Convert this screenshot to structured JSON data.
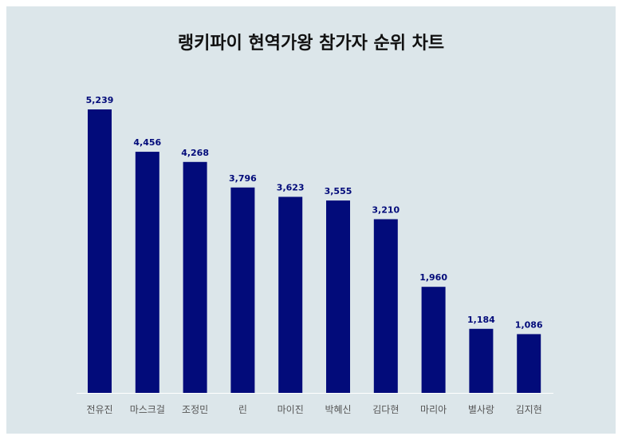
{
  "chart_data": {
    "type": "bar",
    "title": "랭키파이 현역가왕 참가자 순위 차트",
    "categories": [
      "전유진",
      "마스크걸",
      "조정민",
      "린",
      "마이진",
      "박혜신",
      "김다현",
      "마리아",
      "별사랑",
      "김지현"
    ],
    "values": [
      5239,
      4456,
      4268,
      3796,
      3623,
      3555,
      3210,
      1960,
      1184,
      1086
    ],
    "value_labels": [
      "5,239",
      "4,456",
      "4,268",
      "3,796",
      "3,623",
      "3,555",
      "3,210",
      "1,960",
      "1,184",
      "1,086"
    ],
    "xlabel": "",
    "ylabel": "",
    "ylim": [
      0,
      5239
    ],
    "grid": false,
    "legend": "none",
    "colors": {
      "bar": "#020b7a",
      "value_label": "#020b7a",
      "background": "#dce6ea",
      "baseline": "#ffffff",
      "tick_label": "#555555"
    }
  }
}
